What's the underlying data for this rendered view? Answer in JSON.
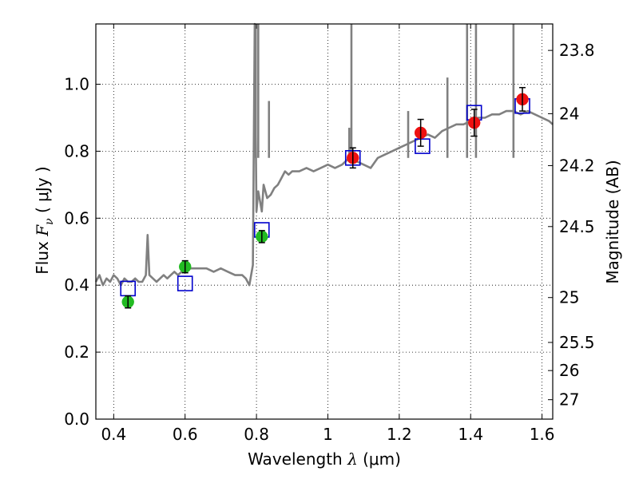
{
  "chart_data": {
    "type": "line",
    "xlabel_prefix": "Wavelength  ",
    "xlabel_symbol": "λ",
    "xlabel_unit": " (μm)",
    "ylabel_prefix": "Flux  ",
    "ylabel_symbol": "F",
    "ylabel_subscript": "ν",
    "ylabel_unit": "  ( μJy )",
    "y2label": "Magnitude (AB)",
    "xlim": [
      0.35,
      1.63
    ],
    "ylim": [
      0.0,
      1.18
    ],
    "grid": true,
    "x_ticks": [
      {
        "value": 0.4,
        "label": "0.4"
      },
      {
        "value": 0.6,
        "label": "0.6"
      },
      {
        "value": 0.8,
        "label": "0.8"
      },
      {
        "value": 1.0,
        "label": "1"
      },
      {
        "value": 1.2,
        "label": "1.2"
      },
      {
        "value": 1.4,
        "label": "1.4"
      },
      {
        "value": 1.6,
        "label": "1.6"
      }
    ],
    "y_ticks": [
      {
        "value": 0.0,
        "label": "0.0"
      },
      {
        "value": 0.2,
        "label": "0.2"
      },
      {
        "value": 0.4,
        "label": "0.4"
      },
      {
        "value": 0.6,
        "label": "0.6"
      },
      {
        "value": 0.8,
        "label": "0.8"
      },
      {
        "value": 1.0,
        "label": "1.0"
      }
    ],
    "y2_ticks": [
      {
        "flux": 1.101,
        "label": "23.8"
      },
      {
        "flux": 0.912,
        "label": "24"
      },
      {
        "flux": 0.757,
        "label": "24.2"
      },
      {
        "flux": 0.575,
        "label": "24.5"
      },
      {
        "flux": 0.363,
        "label": "25"
      },
      {
        "flux": 0.229,
        "label": "25.5"
      },
      {
        "flux": 0.145,
        "label": "26"
      },
      {
        "flux": 0.058,
        "label": "27"
      }
    ],
    "spectrum": {
      "name": "model spectrum",
      "color": "#808080",
      "x": [
        0.35,
        0.36,
        0.37,
        0.38,
        0.39,
        0.4,
        0.41,
        0.42,
        0.43,
        0.44,
        0.45,
        0.46,
        0.47,
        0.48,
        0.49,
        0.495,
        0.5,
        0.51,
        0.52,
        0.53,
        0.54,
        0.55,
        0.56,
        0.57,
        0.58,
        0.59,
        0.6,
        0.62,
        0.64,
        0.66,
        0.68,
        0.7,
        0.72,
        0.74,
        0.76,
        0.77,
        0.78,
        0.79,
        0.795,
        0.8,
        0.805,
        0.81,
        0.815,
        0.82,
        0.83,
        0.84,
        0.85,
        0.86,
        0.87,
        0.88,
        0.89,
        0.9,
        0.92,
        0.94,
        0.96,
        0.98,
        1.0,
        1.02,
        1.04,
        1.06,
        1.07,
        1.08,
        1.1,
        1.12,
        1.14,
        1.16,
        1.18,
        1.2,
        1.22,
        1.24,
        1.26,
        1.28,
        1.3,
        1.32,
        1.34,
        1.36,
        1.38,
        1.4,
        1.42,
        1.44,
        1.46,
        1.48,
        1.5,
        1.52,
        1.54,
        1.56,
        1.58,
        1.6,
        1.62,
        1.63
      ],
      "y": [
        0.41,
        0.43,
        0.4,
        0.42,
        0.41,
        0.43,
        0.42,
        0.4,
        0.42,
        0.41,
        0.41,
        0.42,
        0.41,
        0.41,
        0.43,
        0.55,
        0.43,
        0.42,
        0.41,
        0.42,
        0.43,
        0.42,
        0.43,
        0.44,
        0.43,
        0.44,
        0.45,
        0.45,
        0.45,
        0.45,
        0.44,
        0.45,
        0.44,
        0.43,
        0.43,
        0.42,
        0.4,
        0.46,
        1.18,
        0.62,
        0.68,
        0.65,
        0.62,
        0.7,
        0.66,
        0.67,
        0.69,
        0.7,
        0.72,
        0.74,
        0.73,
        0.74,
        0.74,
        0.75,
        0.74,
        0.75,
        0.76,
        0.75,
        0.76,
        0.78,
        0.78,
        0.77,
        0.76,
        0.75,
        0.78,
        0.79,
        0.8,
        0.81,
        0.82,
        0.83,
        0.84,
        0.85,
        0.84,
        0.86,
        0.87,
        0.88,
        0.88,
        0.89,
        0.9,
        0.9,
        0.91,
        0.91,
        0.92,
        0.92,
        0.91,
        0.92,
        0.91,
        0.9,
        0.89,
        0.88
      ]
    },
    "emission_lines": [
      {
        "x": 0.798,
        "height": 1.18
      },
      {
        "x": 0.805,
        "height": 1.18
      },
      {
        "x": 0.835,
        "height": 0.95
      },
      {
        "x": 1.06,
        "height": 0.87
      },
      {
        "x": 1.066,
        "height": 1.18
      },
      {
        "x": 1.225,
        "height": 0.92
      },
      {
        "x": 1.335,
        "height": 1.02
      },
      {
        "x": 1.39,
        "height": 1.18
      },
      {
        "x": 1.415,
        "height": 1.18
      },
      {
        "x": 1.52,
        "height": 1.18
      }
    ],
    "model_photometry": {
      "name": "model photometry",
      "color": "#0000cc",
      "x": [
        0.44,
        0.6,
        0.815,
        1.07,
        1.265,
        1.41,
        1.545
      ],
      "y": [
        0.39,
        0.405,
        0.565,
        0.78,
        0.815,
        0.915,
        0.935
      ]
    },
    "observed_ground": {
      "name": "observed photometry (ground)",
      "color": "#22bb22",
      "x": [
        0.44,
        0.6,
        0.815
      ],
      "y": [
        0.35,
        0.455,
        0.545
      ],
      "err": [
        0.018,
        0.018,
        0.018
      ]
    },
    "observed_space": {
      "name": "observed photometry (space)",
      "color": "#ee1111",
      "x": [
        1.07,
        1.26,
        1.41,
        1.545
      ],
      "y": [
        0.78,
        0.855,
        0.885,
        0.955
      ],
      "err": [
        0.03,
        0.04,
        0.04,
        0.035
      ]
    }
  }
}
